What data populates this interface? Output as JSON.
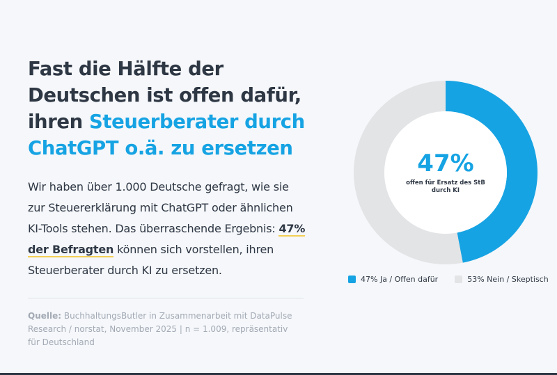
{
  "headline": {
    "line1": "Fast die Hälfte der",
    "line2": "Deutschen ist offen dafür,",
    "line3_plain": "ihren ",
    "line3_accent": "Steuerberater durch",
    "line4_accent": "ChatGPT o.ä. zu ersetzen"
  },
  "lead": {
    "part1": "Wir haben über 1.000 Deutsche gefragt, wie sie zur Steuererklärung mit ChatGPT oder ähnlichen KI-Tools stehen. Das überraschende Ergebnis: ",
    "strong": "47% der Befragten",
    "part2": " können sich vorstellen, ihren Steuerberater durch KI zu ersetzen."
  },
  "source": {
    "label": "Quelle:",
    "text": " BuchhaltungsButler in Zusammenarbeit mit DataPulse Research / norstat, November 2025 | n = 1.009, repräsentativ für Deutschland"
  },
  "colors": {
    "accent": "#16a3e3",
    "neutral": "#e3e4e6",
    "text": "#2e3744"
  },
  "chart_data": {
    "type": "pie",
    "variant": "donut",
    "categories": [
      "47% Ja / Offen dafür",
      "53% Nein / Skeptisch"
    ],
    "values": [
      47,
      53
    ],
    "colors": [
      "#16a3e3",
      "#e3e4e6"
    ],
    "center_value": "47%",
    "center_label": "offen für Ersatz des StB durch KI",
    "legend_position": "bottom"
  }
}
